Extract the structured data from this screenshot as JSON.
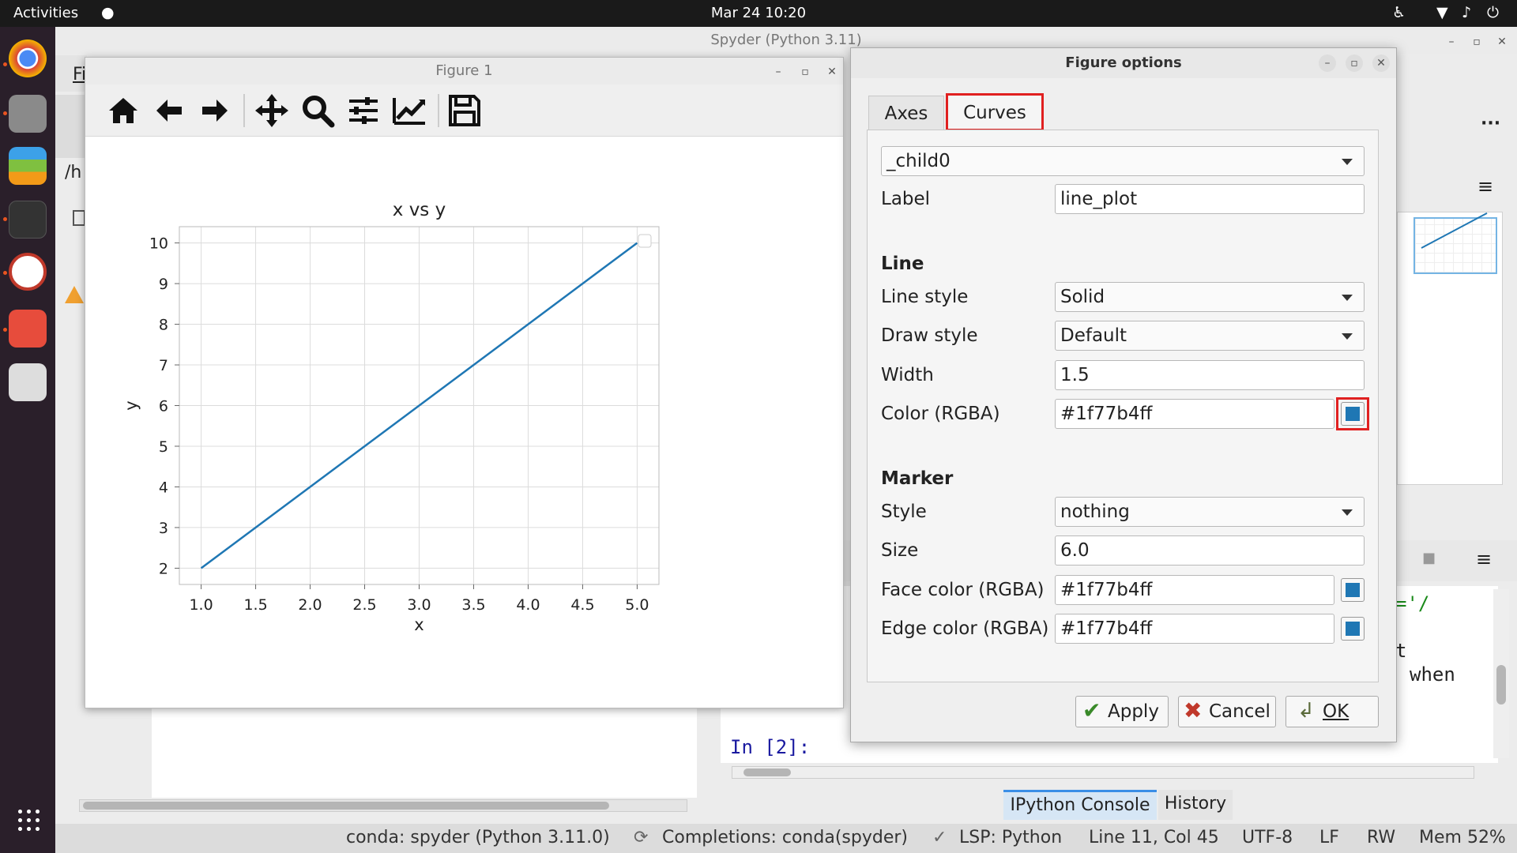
{
  "topbar": {
    "activities": "Activities",
    "clock": "Mar 24  10:20"
  },
  "spyder": {
    "title": "Spyder (Python 3.11)",
    "menu_fragment": "Fi",
    "path_fragment": "/h",
    "console_prompt": "In [2]:",
    "console_text_1": "='/",
    "console_text_2": "t",
    "console_text_3": "when",
    "console_tabs": [
      "IPython Console",
      "History"
    ],
    "status": {
      "conda": "conda: spyder (Python 3.11.0)",
      "completions": "Completions: conda(spyder)",
      "lsp": "LSP: Python",
      "position": "Line 11, Col 45",
      "encoding": "UTF-8",
      "eol": "LF",
      "mode": "RW",
      "memory": "Mem 52%"
    }
  },
  "figure_window": {
    "title": "Figure 1",
    "toolbar": [
      "home-icon",
      "back-arrow-icon",
      "forward-arrow-icon",
      "pan-icon",
      "zoom-icon",
      "subplots-icon",
      "edit-axis-icon",
      "save-icon"
    ]
  },
  "chart_data": {
    "type": "line",
    "title": "x vs y",
    "xlabel": "x",
    "ylabel": "y",
    "xlim": [
      0.8,
      5.2
    ],
    "ylim": [
      1.6,
      10.4
    ],
    "xticks": [
      "1.0",
      "1.5",
      "2.0",
      "2.5",
      "3.0",
      "3.5",
      "4.0",
      "4.5",
      "5.0"
    ],
    "yticks": [
      "2",
      "3",
      "4",
      "5",
      "6",
      "7",
      "8",
      "9",
      "10"
    ],
    "grid": true,
    "legend": "top-right",
    "series": [
      {
        "x": [
          1,
          5
        ],
        "y": [
          2,
          10
        ],
        "color": "#1f77b4"
      }
    ]
  },
  "dialog": {
    "title": "Figure options",
    "tabs": {
      "axes": "Axes",
      "curves": "Curves"
    },
    "curve_select": "_child0",
    "label_label": "Label",
    "label_value": "line_plot",
    "line_section": "Line",
    "line_style_label": "Line style",
    "line_style_value": "Solid",
    "draw_style_label": "Draw style",
    "draw_style_value": "Default",
    "width_label": "Width",
    "width_value": "1.5",
    "color_label": "Color (RGBA)",
    "color_value": "#1f77b4ff",
    "marker_section": "Marker",
    "marker_style_label": "Style",
    "marker_style_value": "nothing",
    "size_label": "Size",
    "size_value": "6.0",
    "face_color_label": "Face color (RGBA)",
    "face_color_value": "#1f77b4ff",
    "edge_color_label": "Edge color (RGBA)",
    "edge_color_value": "#1f77b4ff",
    "apply": "Apply",
    "cancel": "Cancel",
    "ok": "OK",
    "swatch_color": "#1f77b4",
    "highlight_color": "#e02020"
  }
}
